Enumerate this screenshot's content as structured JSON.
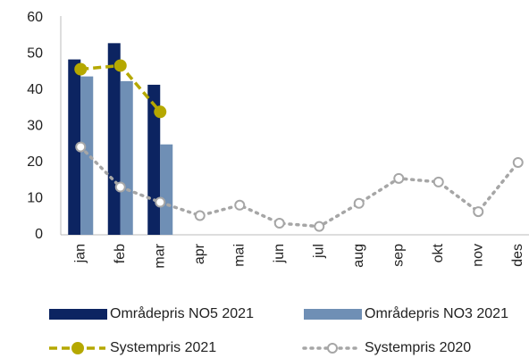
{
  "chart_data": {
    "type": "bar",
    "categories": [
      "jan",
      "feb",
      "mar",
      "apr",
      "mai",
      "jun",
      "jul",
      "aug",
      "sep",
      "okt",
      "nov",
      "des"
    ],
    "ylim": [
      0,
      60
    ],
    "yticks": [
      0,
      10,
      20,
      30,
      40,
      50,
      60
    ],
    "grid": false,
    "series": [
      {
        "name": "Områdepris NO5 2021",
        "type": "bar",
        "color": "#0c2461",
        "values": [
          48.5,
          53,
          41.5,
          null,
          null,
          null,
          null,
          null,
          null,
          null,
          null,
          null
        ]
      },
      {
        "name": "Områdepris NO3 2021",
        "type": "bar",
        "color": "#6f8fb5",
        "values": [
          43.8,
          42.5,
          25,
          null,
          null,
          null,
          null,
          null,
          null,
          null,
          null,
          null
        ]
      },
      {
        "name": "Systempris 2021",
        "type": "line",
        "style": "dashed",
        "marker": "filled",
        "color": "#b5a800",
        "values": [
          45.8,
          46.8,
          34,
          null,
          null,
          null,
          null,
          null,
          null,
          null,
          null,
          null
        ]
      },
      {
        "name": "Systempris 2020",
        "type": "line",
        "style": "dotted",
        "marker": "hollow",
        "color": "#a6a6a6",
        "values": [
          24.3,
          13.2,
          9,
          5.3,
          8.2,
          3.2,
          2.3,
          8.7,
          15.6,
          14.6,
          6.4,
          20
        ]
      }
    ]
  }
}
